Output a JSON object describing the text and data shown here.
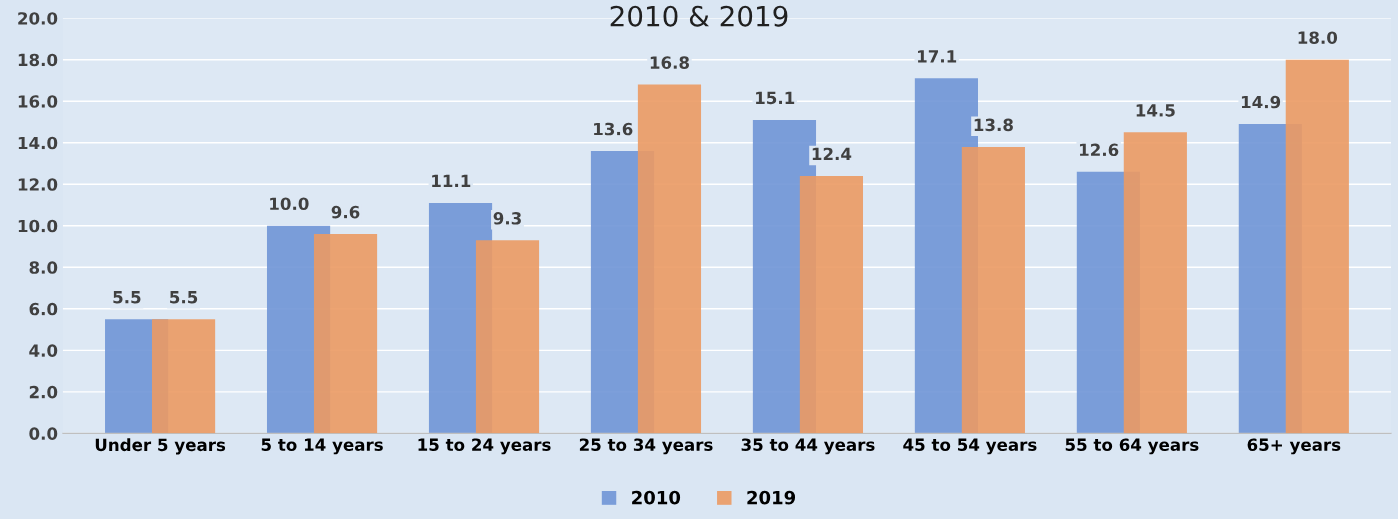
{
  "chart_data": {
    "type": "bar",
    "title": "2010 & 2019",
    "categories": [
      "Under 5 years",
      "5 to 14 years",
      "15 to 24 years",
      "25 to 34 years",
      "35 to 44 years",
      "45 to 54 years",
      "55 to 64 years",
      "65+ years"
    ],
    "series": [
      {
        "name": "2010",
        "color": "#6f95d6",
        "values": [
          5.5,
          10.0,
          11.1,
          13.6,
          15.1,
          17.1,
          12.6,
          14.9
        ],
        "value_labels": [
          "5.5",
          "10.0",
          "11.1",
          "13.6",
          "15.1",
          "17.1",
          "12.6",
          "14.9"
        ]
      },
      {
        "name": "2019",
        "color": "#eb9a63",
        "values": [
          5.5,
          9.6,
          9.3,
          16.8,
          12.4,
          13.8,
          14.5,
          18.0
        ],
        "value_labels": [
          "5.5",
          "9.6",
          "9.3",
          "16.8",
          "12.4",
          "13.8",
          "14.5",
          "18.0"
        ]
      }
    ],
    "ylim": [
      0,
      20
    ],
    "yticks": [
      {
        "value": 0,
        "label": "0.0"
      },
      {
        "value": 2,
        "label": "2.0"
      },
      {
        "value": 4,
        "label": "4.0"
      },
      {
        "value": 6,
        "label": "6.0"
      },
      {
        "value": 8,
        "label": "8.0"
      },
      {
        "value": 10,
        "label": "10.0"
      },
      {
        "value": 12,
        "label": "12.0"
      },
      {
        "value": 14,
        "label": "14.0"
      },
      {
        "value": 16,
        "label": "16.0"
      },
      {
        "value": 18,
        "label": "18.0"
      },
      {
        "value": 20,
        "label": "20.0"
      }
    ],
    "grid": "y",
    "legend": "bottom"
  }
}
